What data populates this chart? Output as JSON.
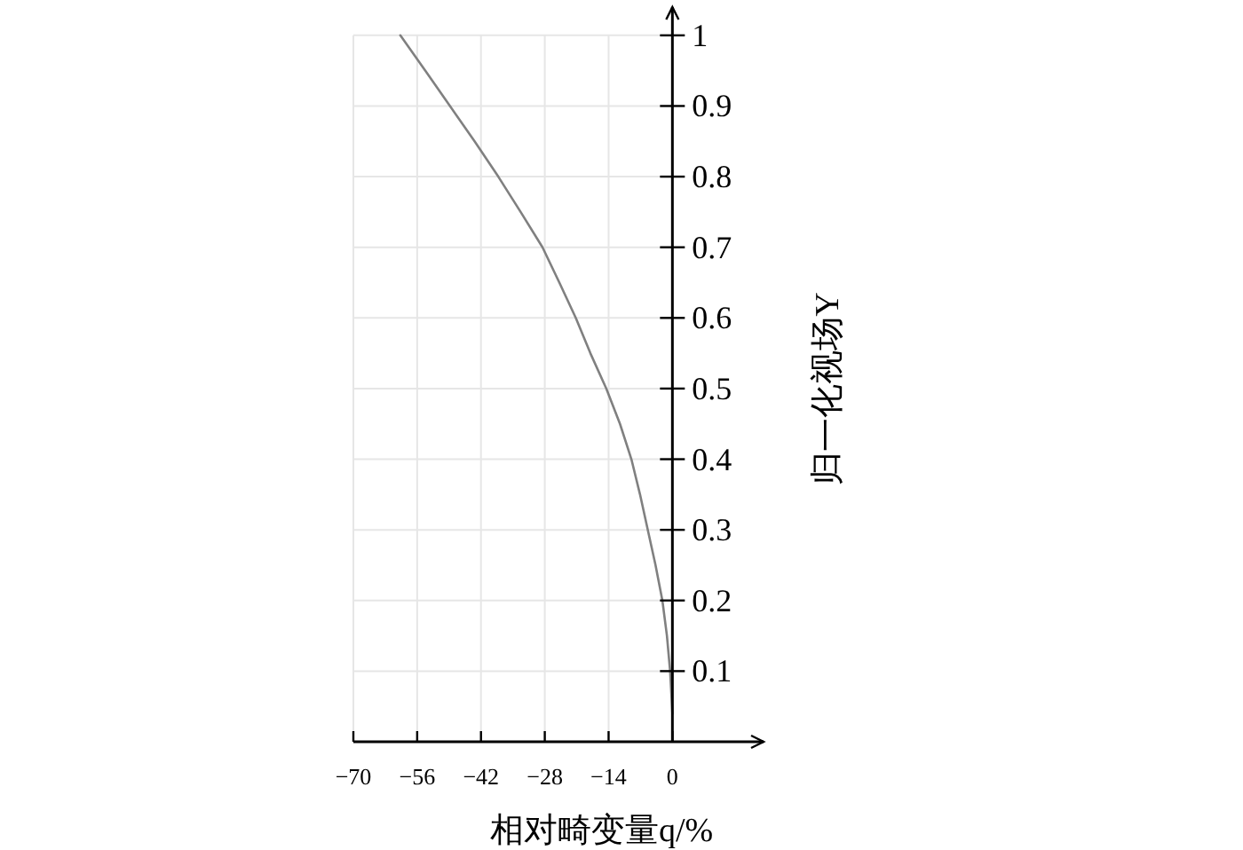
{
  "chart_data": {
    "type": "line",
    "xlabel": "相对畸变量q/%",
    "ylabel": "归一化视场Y",
    "x": [
      0,
      -0.5,
      -1.2,
      -2.2,
      -3.7,
      -5.4,
      -7.1,
      -9,
      -11.5,
      -14.5,
      -18,
      -21.2,
      -24.8,
      -28.5,
      -33.3,
      -38.2,
      -43.4,
      -48.8,
      -54.2,
      -59.7
    ],
    "values": [
      0.04,
      0.1,
      0.15,
      0.2,
      0.25,
      0.3,
      0.35,
      0.4,
      0.45,
      0.5,
      0.55,
      0.6,
      0.65,
      0.7,
      0.75,
      0.8,
      0.85,
      0.9,
      0.95,
      1
    ],
    "color": "#808080",
    "xlim": [
      -70,
      20
    ],
    "ylim": [
      0,
      1.04
    ],
    "xticks": [
      -70,
      -56,
      -42,
      -28,
      -14,
      0
    ],
    "yticks": [
      0.1,
      0.2,
      0.3,
      0.4,
      0.5,
      0.6,
      0.7,
      0.8,
      0.9,
      1
    ],
    "grid": true
  }
}
